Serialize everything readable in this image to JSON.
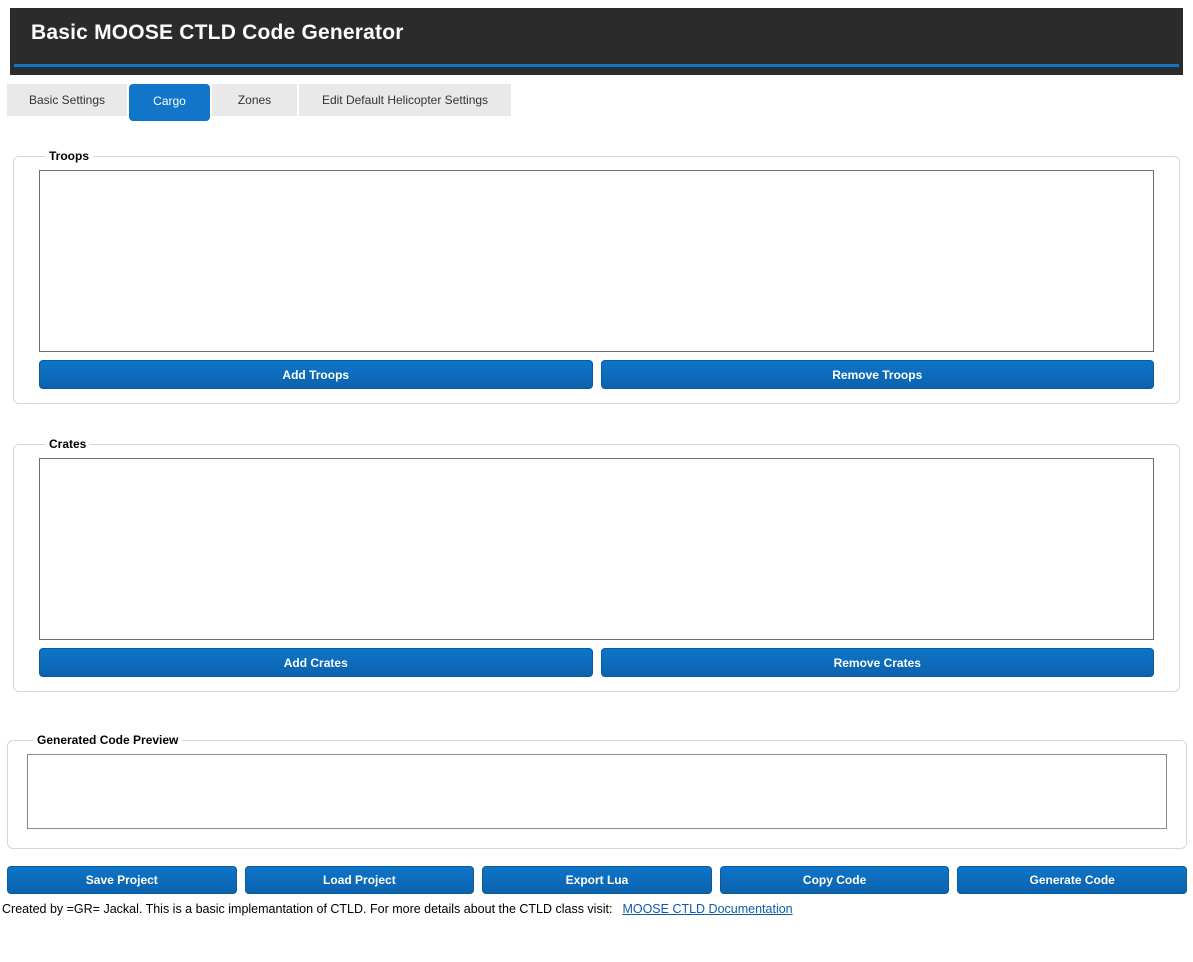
{
  "header": {
    "title": "Basic MOOSE CTLD Code Generator"
  },
  "tabs": [
    {
      "label": "Basic Settings",
      "active": false
    },
    {
      "label": "Cargo",
      "active": true
    },
    {
      "label": "Zones",
      "active": false
    },
    {
      "label": "Edit Default Helicopter Settings",
      "active": false
    }
  ],
  "sections": {
    "troops": {
      "legend": "Troops",
      "list_items": [],
      "add_label": "Add Troops",
      "remove_label": "Remove Troops"
    },
    "crates": {
      "legend": "Crates",
      "list_items": [],
      "add_label": "Add Crates",
      "remove_label": "Remove Crates"
    },
    "preview": {
      "legend": "Generated Code Preview",
      "content": ""
    }
  },
  "actions": [
    {
      "label": "Save Project"
    },
    {
      "label": "Load Project"
    },
    {
      "label": "Export Lua"
    },
    {
      "label": "Copy Code"
    },
    {
      "label": "Generate Code"
    }
  ],
  "footer": {
    "text": "Created by =GR= Jackal. This is a basic implemantation of CTLD. For more details about the CTLD class visit:",
    "link_label": "MOOSE CTLD Documentation"
  },
  "colors": {
    "header_bg": "#2b2b2b",
    "accent_blue": "#1176c9",
    "button_top": "#0f74c8",
    "button_bottom": "#0b63ae",
    "tab_inactive_bg": "#e9e9e9",
    "link": "#0b5cad",
    "listbox_border": "#6e6e6e",
    "groupbox_border": "#d6d6d6"
  }
}
